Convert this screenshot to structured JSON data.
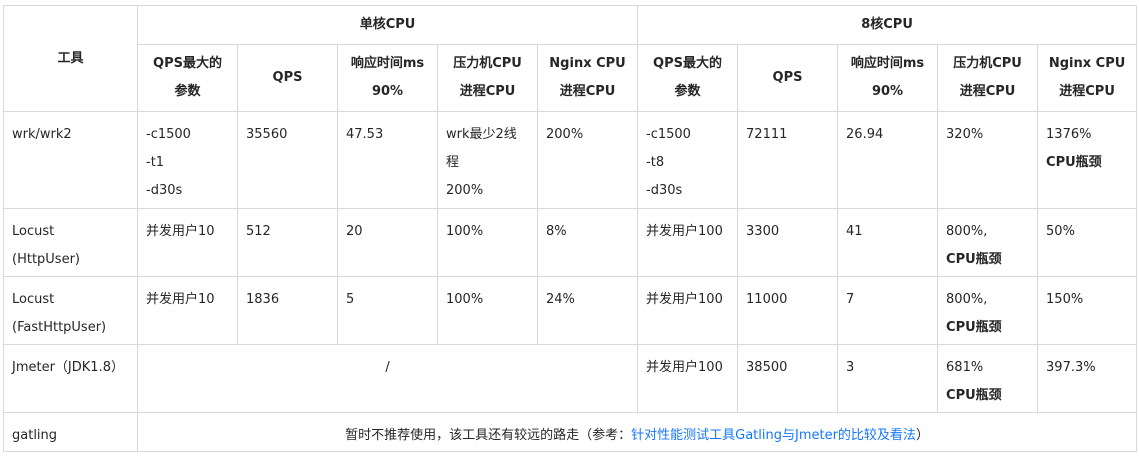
{
  "header": {
    "tool": "工具",
    "single_core": "单核CPU",
    "eight_core": "8核CPU",
    "columns": [
      [
        "QPS最大的",
        "参数"
      ],
      [
        "QPS"
      ],
      [
        "响应时间ms",
        "90%"
      ],
      [
        "压力机CPU",
        "进程CPU"
      ],
      [
        "Nginx CPU",
        "进程CPU"
      ]
    ]
  },
  "rows": [
    {
      "tool": [
        "wrk/wrk2"
      ],
      "s_params": [
        "-c1500",
        "-t1",
        "-d30s"
      ],
      "s_qps": "35560",
      "s_rt": "47.53",
      "s_press": [
        "wrk最少2线程",
        "200%"
      ],
      "s_nginx": "200%",
      "e_params": [
        "-c1500",
        "-t8",
        "-d30s"
      ],
      "e_qps": "72111",
      "e_rt": "26.94",
      "e_press": "320%",
      "e_nginx": "1376%",
      "e_nginx_note": "CPU瓶颈"
    },
    {
      "tool": [
        "Locust",
        "(HttpUser)"
      ],
      "s_params": "并发用户10",
      "s_qps": "512",
      "s_rt": "20",
      "s_press": "100%",
      "s_nginx": "8%",
      "e_params": "并发用户100",
      "e_qps": "3300",
      "e_rt": "41",
      "e_press": "800%,",
      "e_press_note": "CPU瓶颈",
      "e_nginx": "50%"
    },
    {
      "tool": [
        "Locust",
        "(FastHttpUser)"
      ],
      "s_params": "并发用户10",
      "s_qps": "1836",
      "s_rt": "5",
      "s_press": "100%",
      "s_nginx": "24%",
      "e_params": "并发用户100",
      "e_qps": "11000",
      "e_rt": "7",
      "e_press": "800%,",
      "e_press_note": "CPU瓶颈",
      "e_nginx": "150%"
    },
    {
      "tool": "Jmeter（JDK1.8）",
      "single_merged": "/",
      "e_params": "并发用户100",
      "e_qps": "38500",
      "e_rt": "3",
      "e_press": "681%",
      "e_press_note": "CPU瓶颈",
      "e_nginx": "397.3%"
    },
    {
      "tool": "gatling",
      "note_prefix": "暂时不推荐使用，该工具还有较远的路走（参考：",
      "note_link": "针对性能测试工具Gatling与Jmeter的比较及看法",
      "note_suffix": "）"
    }
  ],
  "colors": {
    "border": "#d9d9d9",
    "link": "#1677ff",
    "text": "#262626"
  }
}
